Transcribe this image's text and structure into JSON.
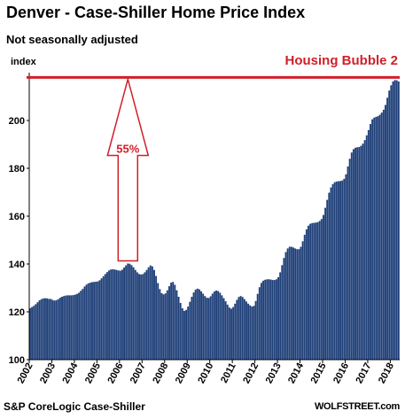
{
  "header": {
    "title": "Denver  - Case-Shiller Home Price Index",
    "subtitle": "Not seasonally adjusted"
  },
  "footer": {
    "source": "S&P CoreLogic Case-Shiller",
    "brand": "WOLFSTREET.com"
  },
  "colors": {
    "bar": "#1e3f78",
    "bar_highlight": "#5a82bd",
    "reference_line": "#d11f2a"
  },
  "chart_data": {
    "type": "bar",
    "ylabel": "index",
    "ylim": [
      100,
      220
    ],
    "yticks": [
      100,
      120,
      140,
      160,
      180,
      200
    ],
    "xlabels": [
      "2002",
      "2003",
      "2004",
      "2005",
      "2006",
      "2007",
      "2008",
      "2009",
      "2010",
      "2011",
      "2012",
      "2013",
      "2014",
      "2015",
      "2016",
      "2017",
      "2018"
    ],
    "grid": false,
    "series": [
      {
        "values": [
          121.5,
          122.0,
          122.5,
          123.2,
          124.0,
          124.8,
          125.3,
          125.6,
          125.7,
          125.6,
          125.4,
          125.4,
          125.0,
          124.7,
          124.9,
          125.3,
          125.9,
          126.3,
          126.6,
          126.8,
          126.9,
          126.9,
          126.9,
          127.0,
          127.2,
          127.5,
          128.0,
          128.8,
          129.6,
          130.6,
          131.4,
          131.9,
          132.2,
          132.4,
          132.5,
          132.6,
          132.7,
          133.2,
          134.0,
          134.9,
          135.8,
          136.6,
          137.3,
          137.7,
          137.8,
          137.7,
          137.5,
          137.3,
          137.2,
          137.6,
          138.5,
          139.4,
          140.2,
          140.1,
          139.5,
          138.6,
          137.5,
          136.5,
          135.8,
          135.6,
          135.8,
          136.5,
          137.5,
          138.6,
          139.4,
          139.0,
          137.5,
          135.0,
          132.0,
          129.5,
          127.8,
          127.3,
          127.7,
          129.0,
          130.7,
          132.2,
          132.5,
          131.3,
          129.0,
          126.3,
          123.7,
          121.5,
          120.4,
          120.8,
          122.2,
          124.2,
          126.3,
          128.1,
          129.3,
          129.7,
          129.4,
          128.6,
          127.6,
          126.6,
          125.9,
          125.8,
          126.5,
          127.6,
          128.5,
          128.9,
          128.7,
          128.0,
          126.9,
          125.7,
          124.4,
          123.0,
          121.8,
          121.3,
          122.0,
          123.4,
          125.0,
          126.2,
          126.6,
          126.2,
          125.3,
          124.3,
          123.4,
          122.7,
          122.2,
          122.5,
          124.5,
          127.5,
          130.3,
          132.1,
          133.0,
          133.4,
          133.6,
          133.6,
          133.5,
          133.3,
          133.3,
          133.6,
          134.5,
          136.5,
          139.5,
          142.5,
          145.0,
          146.5,
          147.2,
          147.2,
          146.9,
          146.5,
          146.2,
          146.2,
          147.2,
          149.5,
          152.2,
          154.5,
          156.0,
          156.8,
          157.1,
          157.2,
          157.3,
          157.5,
          158.0,
          158.8,
          160.5,
          163.5,
          166.8,
          169.8,
          172.0,
          173.4,
          174.2,
          174.5,
          174.6,
          174.7,
          174.9,
          175.6,
          177.5,
          180.8,
          184.0,
          186.6,
          188.0,
          188.6,
          188.8,
          188.9,
          189.4,
          190.3,
          191.8,
          193.8,
          196.0,
          198.5,
          200.5,
          201.2,
          201.5,
          201.8,
          202.4,
          203.3,
          204.5,
          206.5,
          209.5,
          212.5,
          214.7,
          216.3,
          216.9,
          216.8,
          216.3
        ]
      }
    ],
    "reference_line": {
      "value": 218,
      "label": "Housing Bubble 2"
    },
    "annotation": {
      "text": "55%",
      "from": 140.2,
      "to": 218
    }
  }
}
